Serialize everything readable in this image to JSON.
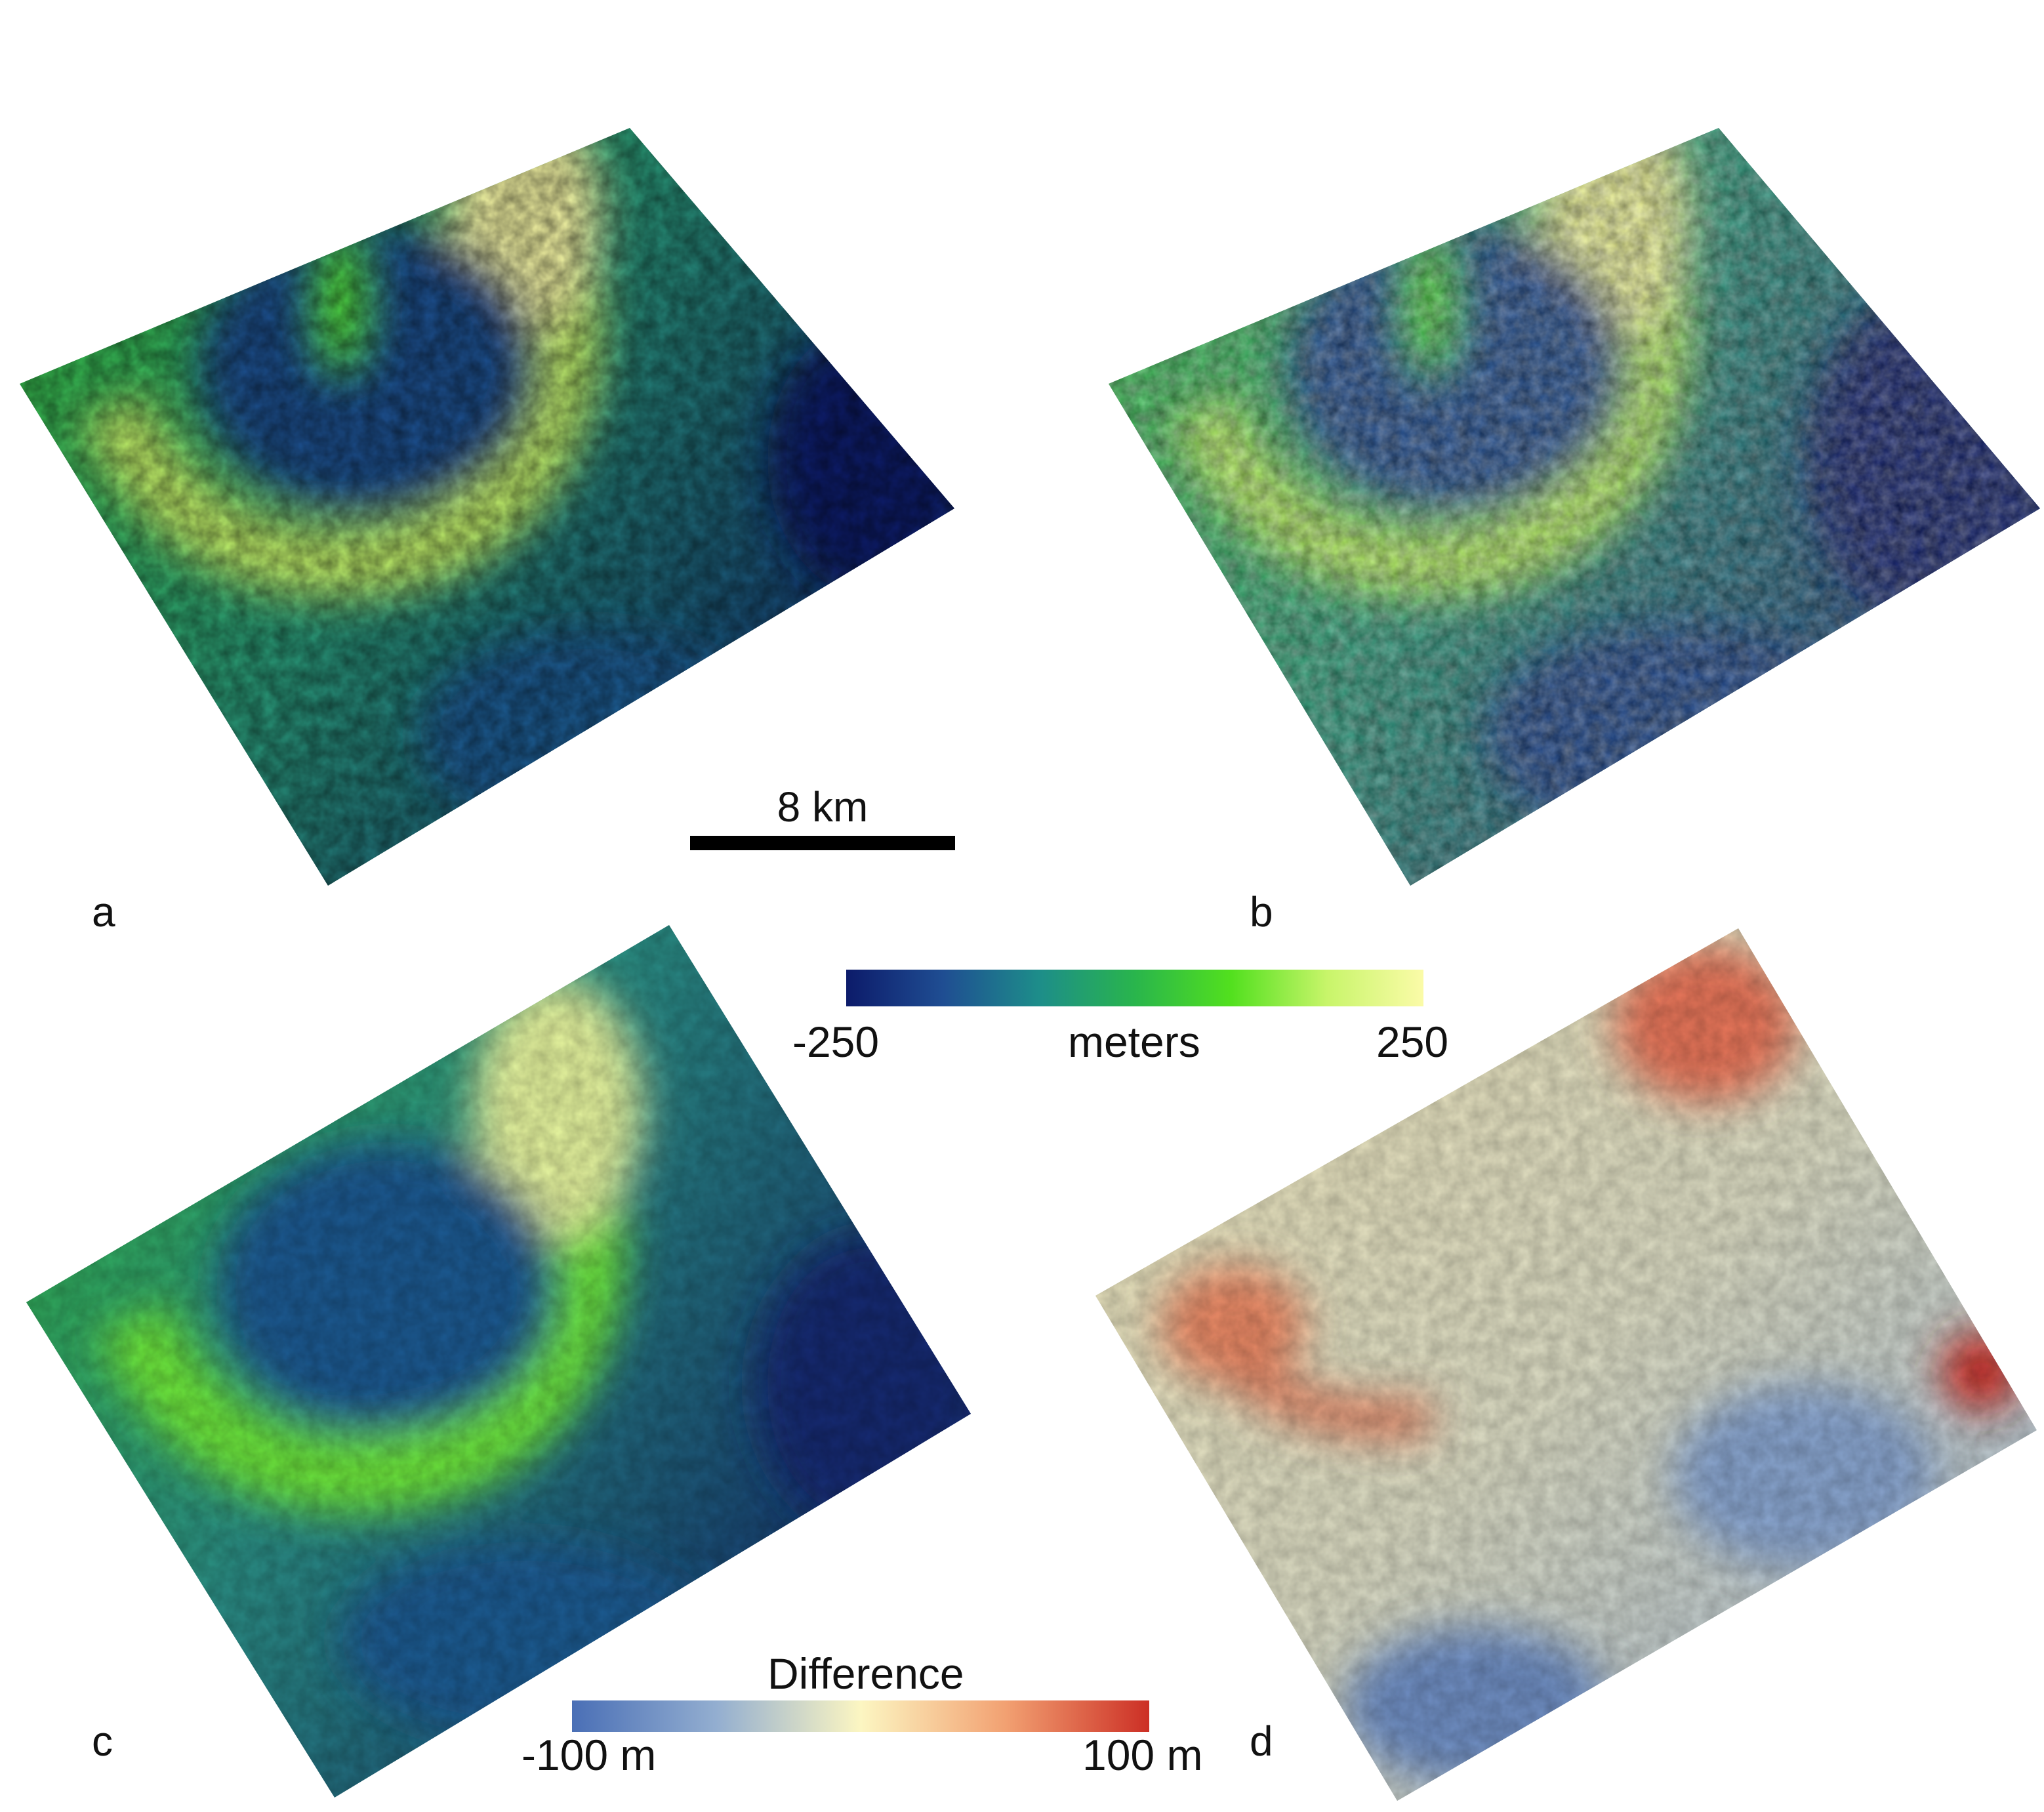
{
  "panels": {
    "a": {
      "label": "a",
      "colormap": "elevation"
    },
    "b": {
      "label": "b",
      "colormap": "elevation"
    },
    "c": {
      "label": "c",
      "colormap": "elevation"
    },
    "d": {
      "label": "d",
      "colormap": "difference"
    }
  },
  "scale_bar": {
    "label": "8 km"
  },
  "elevation_colorbar": {
    "min_label": "-250",
    "unit_label": "meters",
    "max_label": "250",
    "colors": [
      "#0c1b6a",
      "#1f4d92",
      "#1d8d8a",
      "#29b54c",
      "#52e01e",
      "#c8f56a",
      "#fbfba8"
    ]
  },
  "difference_colorbar": {
    "title": "Difference",
    "min_label": "-100 m",
    "max_label": "100 m",
    "colors": [
      "#4a6fb6",
      "#93aed0",
      "#fcf6c2",
      "#f2a172",
      "#cc2f25"
    ]
  }
}
